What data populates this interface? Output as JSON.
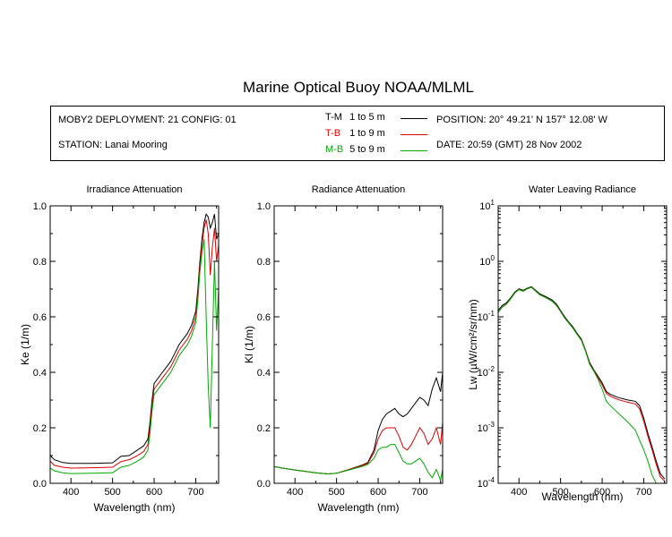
{
  "page": {
    "title": "Marine Optical Buoy NOAA/MLML"
  },
  "info": {
    "deployment": "MOBY2 DEPLOYMENT: 21 CONFIG: 01",
    "station": "STATION: Lanai Mooring",
    "position": "POSITION: 20° 49.21' N   157° 12.08' W",
    "date": "DATE: 20:59 (GMT) 28 Nov 2002",
    "legend": [
      {
        "code": "T-M",
        "range": "1 to 5  m",
        "color": "#000000"
      },
      {
        "code": "T-B",
        "range": "1 to 9  m",
        "color": "#dd0000"
      },
      {
        "code": "M-B",
        "range": "5 to 9  m",
        "color": "#00aa00"
      }
    ]
  },
  "chart_data": [
    {
      "type": "line",
      "title": "Irradiance Attenuation",
      "xlabel": "Wavelength (nm)",
      "ylabel": "Ke  (1/m)",
      "xlim": [
        350,
        755
      ],
      "ylim": [
        0,
        1
      ],
      "xticks": [
        "400",
        "500",
        "600",
        "700"
      ],
      "yticks": [
        "0.0",
        "0.2",
        "0.4",
        "0.6",
        "0.8",
        "1.0"
      ],
      "series": [
        {
          "color": "#000000",
          "x": [
            350,
            360,
            380,
            400,
            450,
            500,
            510,
            520,
            540,
            560,
            575,
            585,
            590,
            595,
            600,
            605,
            610,
            620,
            630,
            640,
            650,
            660,
            670,
            680,
            690,
            700,
            705,
            710,
            715,
            720,
            725,
            730,
            735,
            740,
            745,
            750,
            755
          ],
          "y": [
            0.1,
            0.085,
            0.075,
            0.072,
            0.072,
            0.074,
            0.085,
            0.097,
            0.1,
            0.12,
            0.135,
            0.16,
            0.22,
            0.3,
            0.36,
            0.37,
            0.38,
            0.4,
            0.42,
            0.44,
            0.47,
            0.5,
            0.52,
            0.54,
            0.57,
            0.62,
            0.7,
            0.8,
            0.88,
            0.94,
            0.97,
            0.96,
            0.92,
            0.94,
            0.97,
            0.88,
            0.9
          ]
        },
        {
          "color": "#dd0000",
          "x": [
            350,
            360,
            380,
            400,
            450,
            500,
            510,
            520,
            540,
            560,
            575,
            585,
            590,
            595,
            600,
            605,
            610,
            620,
            630,
            640,
            650,
            660,
            670,
            680,
            690,
            700,
            705,
            710,
            715,
            720,
            725,
            730,
            735,
            740,
            745,
            750,
            755
          ],
          "y": [
            0.08,
            0.065,
            0.058,
            0.055,
            0.056,
            0.058,
            0.068,
            0.078,
            0.085,
            0.1,
            0.115,
            0.14,
            0.2,
            0.28,
            0.34,
            0.35,
            0.36,
            0.38,
            0.4,
            0.42,
            0.45,
            0.48,
            0.5,
            0.52,
            0.55,
            0.6,
            0.68,
            0.78,
            0.86,
            0.92,
            0.95,
            0.9,
            0.75,
            0.85,
            0.92,
            0.8,
            0.86
          ]
        },
        {
          "color": "#00aa00",
          "x": [
            350,
            360,
            380,
            400,
            450,
            500,
            510,
            520,
            540,
            560,
            575,
            585,
            590,
            595,
            600,
            605,
            610,
            620,
            630,
            640,
            650,
            660,
            670,
            680,
            690,
            700,
            705,
            710,
            715,
            720,
            725,
            730,
            735,
            740,
            745,
            750,
            755
          ],
          "y": [
            0.055,
            0.045,
            0.038,
            0.035,
            0.036,
            0.038,
            0.048,
            0.058,
            0.065,
            0.08,
            0.095,
            0.12,
            0.18,
            0.26,
            0.32,
            0.33,
            0.34,
            0.36,
            0.38,
            0.4,
            0.43,
            0.46,
            0.48,
            0.5,
            0.53,
            0.58,
            0.66,
            0.76,
            0.83,
            0.88,
            0.6,
            0.35,
            0.2,
            0.5,
            0.8,
            0.55,
            0.7
          ]
        }
      ]
    },
    {
      "type": "line",
      "title": "Radiance Attenuation",
      "xlabel": "Wavelength (nm)",
      "ylabel": "Kl  (1/m)",
      "xlim": [
        350,
        755
      ],
      "ylim": [
        0,
        1
      ],
      "xticks": [
        "400",
        "500",
        "600",
        "700"
      ],
      "yticks": [
        "0.0",
        "0.2",
        "0.4",
        "0.6",
        "0.8",
        "1.0"
      ],
      "series": [
        {
          "color": "#000000",
          "x": [
            350,
            370,
            400,
            430,
            450,
            480,
            500,
            520,
            540,
            560,
            575,
            590,
            600,
            610,
            620,
            630,
            640,
            650,
            660,
            670,
            680,
            690,
            700,
            710,
            720,
            730,
            740,
            750,
            755
          ],
          "y": [
            0.06,
            0.055,
            0.048,
            0.042,
            0.038,
            0.034,
            0.036,
            0.045,
            0.055,
            0.065,
            0.075,
            0.12,
            0.19,
            0.23,
            0.25,
            0.26,
            0.27,
            0.25,
            0.24,
            0.25,
            0.27,
            0.29,
            0.31,
            0.3,
            0.28,
            0.34,
            0.38,
            0.33,
            0.4
          ]
        },
        {
          "color": "#dd0000",
          "x": [
            350,
            370,
            400,
            430,
            450,
            480,
            500,
            520,
            540,
            560,
            575,
            590,
            600,
            610,
            620,
            630,
            640,
            650,
            660,
            670,
            680,
            690,
            700,
            710,
            720,
            730,
            740,
            750,
            755
          ],
          "y": [
            0.06,
            0.055,
            0.048,
            0.042,
            0.038,
            0.034,
            0.036,
            0.045,
            0.054,
            0.063,
            0.072,
            0.11,
            0.16,
            0.19,
            0.2,
            0.2,
            0.2,
            0.17,
            0.13,
            0.12,
            0.14,
            0.17,
            0.2,
            0.18,
            0.14,
            0.16,
            0.2,
            0.14,
            0.22
          ]
        },
        {
          "color": "#00aa00",
          "x": [
            350,
            370,
            400,
            430,
            450,
            480,
            500,
            520,
            540,
            560,
            575,
            590,
            600,
            610,
            620,
            630,
            640,
            650,
            660,
            670,
            680,
            690,
            700,
            710,
            720,
            730,
            740,
            750,
            755
          ],
          "y": [
            0.06,
            0.055,
            0.048,
            0.042,
            0.038,
            0.034,
            0.036,
            0.044,
            0.052,
            0.06,
            0.068,
            0.09,
            0.12,
            0.13,
            0.13,
            0.14,
            0.14,
            0.11,
            0.08,
            0.07,
            0.07,
            0.08,
            0.09,
            0.07,
            0.04,
            0.02,
            0.05,
            0.01,
            0.05
          ]
        }
      ]
    },
    {
      "type": "line",
      "title": "Water Leaving Radiance",
      "xlabel": "Wavelength (nm)",
      "ylabel": "Lw  (µW/cm²/sr/nm)",
      "xlim": [
        350,
        755
      ],
      "ylim": [
        0.0001,
        10
      ],
      "yscale": "log",
      "xticks": [
        "400",
        "500",
        "600",
        "700"
      ],
      "yticks": [
        {
          "base": "10",
          "exp": "1"
        },
        {
          "base": "10",
          "exp": "0"
        },
        {
          "base": "10",
          "exp": "-1"
        },
        {
          "base": "10",
          "exp": "-2"
        },
        {
          "base": "10",
          "exp": "-3"
        },
        {
          "base": "10",
          "exp": "-4"
        }
      ],
      "series": [
        {
          "color": "#000000",
          "x": [
            350,
            360,
            370,
            380,
            390,
            400,
            410,
            420,
            430,
            440,
            450,
            460,
            470,
            480,
            490,
            500,
            510,
            520,
            530,
            540,
            550,
            560,
            570,
            580,
            590,
            600,
            610,
            620,
            640,
            660,
            680,
            690,
            700,
            710,
            720,
            730,
            740,
            750
          ],
          "y": [
            0.13,
            0.16,
            0.18,
            0.22,
            0.28,
            0.32,
            0.3,
            0.33,
            0.35,
            0.3,
            0.26,
            0.24,
            0.22,
            0.2,
            0.17,
            0.13,
            0.1,
            0.08,
            0.065,
            0.05,
            0.04,
            0.025,
            0.015,
            0.011,
            0.0085,
            0.0065,
            0.0045,
            0.004,
            0.0035,
            0.0032,
            0.003,
            0.0025,
            0.0015,
            0.0008,
            0.00045,
            0.00025,
            0.00015,
            0.00012
          ]
        },
        {
          "color": "#dd0000",
          "x": [
            350,
            360,
            370,
            380,
            390,
            400,
            410,
            420,
            430,
            440,
            450,
            460,
            470,
            480,
            490,
            500,
            510,
            520,
            530,
            540,
            550,
            560,
            570,
            580,
            590,
            600,
            610,
            620,
            640,
            660,
            680,
            690,
            700,
            710,
            720,
            730,
            740,
            750
          ],
          "y": [
            0.12,
            0.15,
            0.17,
            0.21,
            0.27,
            0.31,
            0.29,
            0.32,
            0.34,
            0.29,
            0.25,
            0.23,
            0.21,
            0.19,
            0.16,
            0.125,
            0.095,
            0.077,
            0.062,
            0.048,
            0.038,
            0.024,
            0.014,
            0.0105,
            0.008,
            0.006,
            0.0042,
            0.0037,
            0.0032,
            0.0029,
            0.0027,
            0.0022,
            0.0013,
            0.0007,
            0.0004,
            0.00022,
            0.00013,
            0.00011
          ]
        },
        {
          "color": "#00aa00",
          "x": [
            350,
            360,
            370,
            380,
            390,
            400,
            410,
            420,
            430,
            440,
            450,
            460,
            470,
            480,
            490,
            500,
            510,
            520,
            530,
            540,
            550,
            560,
            570,
            580,
            590,
            600,
            610,
            620,
            640,
            660,
            680,
            690,
            700,
            710,
            720,
            730,
            740,
            750
          ],
          "y": [
            0.12,
            0.15,
            0.17,
            0.21,
            0.27,
            0.31,
            0.29,
            0.32,
            0.34,
            0.29,
            0.25,
            0.23,
            0.21,
            0.19,
            0.16,
            0.125,
            0.095,
            0.077,
            0.062,
            0.048,
            0.038,
            0.024,
            0.014,
            0.0105,
            0.0075,
            0.005,
            0.003,
            0.0025,
            0.0018,
            0.0013,
            0.0009,
            0.0006,
            0.0004,
            0.00025,
            0.00014,
            0.0001,
            9e-05,
            8e-05
          ]
        }
      ]
    }
  ]
}
